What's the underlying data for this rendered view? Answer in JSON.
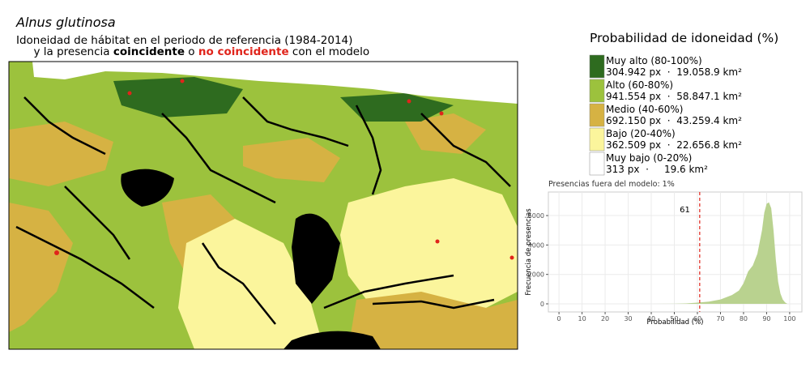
{
  "header": {
    "title": "Alnus glutinosa",
    "subtitle_line1": "Idoneidad de hábitat en el periodo de referencia (1984-2014)",
    "subtitle_line2": [
      "y la presencia ",
      "coincidente",
      " o ",
      "no coincidente",
      " con el modelo"
    ]
  },
  "legend": {
    "title": "Probabilidad de idoneidad (%)",
    "items": [
      {
        "label": "Muy alto (80-100%)",
        "stats": "304.942 px  ·  19.058.9 km²",
        "color": "#2e6b1f"
      },
      {
        "label": "Alto (60-80%)",
        "stats": "941.554 px  ·  58.847.1 km²",
        "color": "#9cc23d"
      },
      {
        "label": "Medio (40-60%)",
        "stats": "692.150 px  ·  43.259.4 km²",
        "color": "#d6b243"
      },
      {
        "label": "Bajo (20-40%)",
        "stats": "362.509 px  ·  22.656.8 km²",
        "color": "#fbf59c"
      },
      {
        "label": "Muy bajo (0-20%)",
        "stats": "313 px  ·     19.6 km²",
        "color": "#ffffff"
      }
    ]
  },
  "chart_data": {
    "type": "area",
    "title": "Presencias fuera del modelo: 1%",
    "xlabel": "Probabilidad (%)",
    "ylabel": "Frecuencia de presencias",
    "x": [
      40,
      50,
      55,
      60,
      65,
      70,
      75,
      78,
      80,
      82,
      84,
      86,
      88,
      89,
      90,
      91,
      92,
      93,
      94,
      95,
      96,
      97,
      98,
      99
    ],
    "values": [
      0,
      10,
      30,
      80,
      150,
      300,
      600,
      900,
      1400,
      2200,
      2600,
      3400,
      5000,
      6200,
      6800,
      6900,
      6500,
      5000,
      3000,
      1500,
      700,
      300,
      100,
      0
    ],
    "color": "#b9d28f",
    "threshold": 61,
    "threshold_color": "#e0241b",
    "xlim": [
      -4.6,
      105.3
    ],
    "ylim": [
      -550,
      7600
    ],
    "xticks": [
      0,
      10,
      20,
      30,
      40,
      50,
      60,
      70,
      80,
      90,
      100
    ],
    "yticks": [
      0,
      2000,
      4000,
      6000
    ],
    "grid": true
  }
}
